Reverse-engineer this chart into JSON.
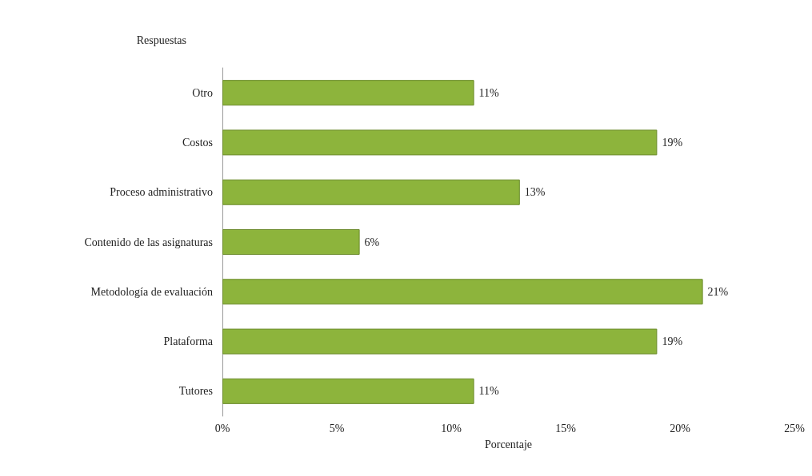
{
  "chart_data": {
    "type": "bar",
    "orientation": "horizontal",
    "ylabel": "Respuestas",
    "xlabel": "Porcentaje",
    "categories": [
      "Otro",
      "Costos",
      "Proceso administrativo",
      "Contenido de las asignaturas",
      "Metodología de evaluación",
      "Plataforma",
      "Tutores"
    ],
    "values": [
      11,
      19,
      13,
      6,
      21,
      19,
      11
    ],
    "value_labels": [
      "11%",
      "19%",
      "13%",
      "6%",
      "21%",
      "19%",
      "11%"
    ],
    "color": "#8db43c",
    "xlim": [
      0,
      25
    ],
    "xticks": [
      {
        "value": 0,
        "label": "0%"
      },
      {
        "value": 5,
        "label": "5%"
      },
      {
        "value": 10,
        "label": "10%"
      },
      {
        "value": 15,
        "label": "15%"
      },
      {
        "value": 20,
        "label": "20%"
      },
      {
        "value": 25,
        "label": "25%"
      }
    ],
    "grid": false
  }
}
